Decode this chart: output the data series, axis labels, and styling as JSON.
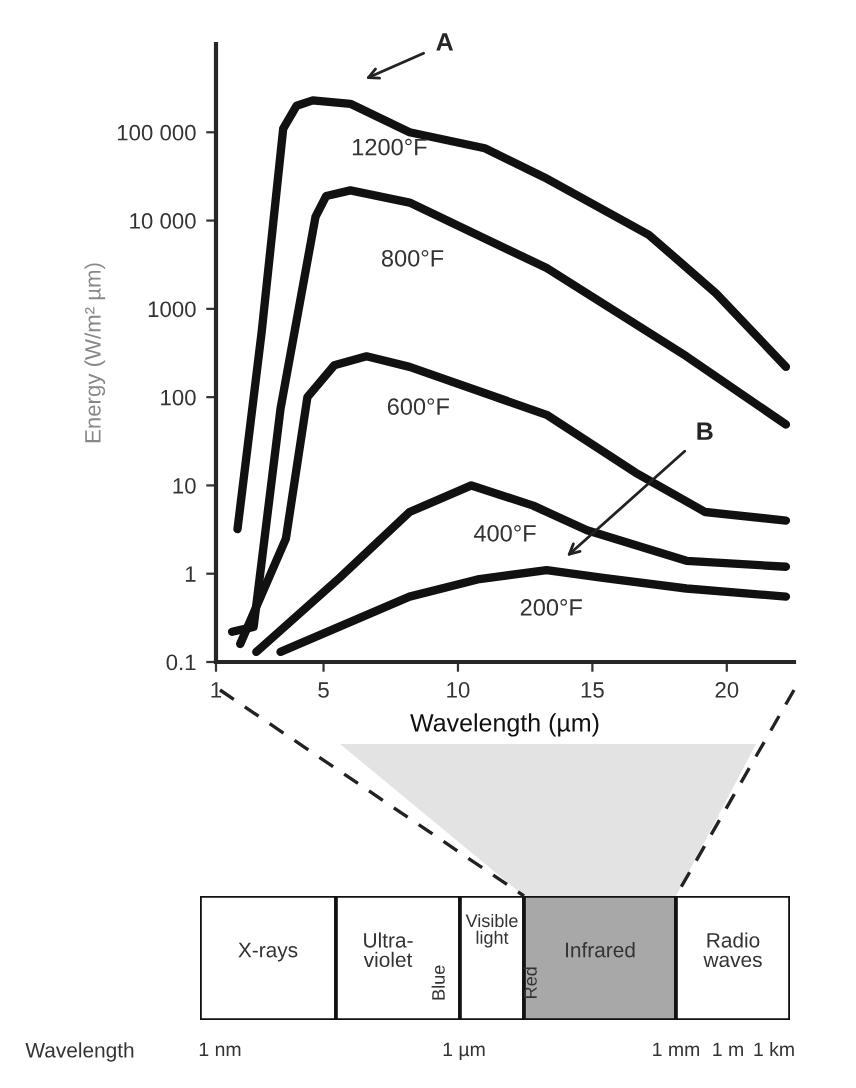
{
  "chart_data": [
    {
      "type": "line",
      "xlabel": "Wavelength (µm)",
      "ylabel": "Energy (W/m² µm)",
      "log": "y",
      "xlim": [
        1,
        22.5
      ],
      "xticks": [
        1,
        5,
        10,
        15,
        20
      ],
      "ylim": [
        0.1,
        1000000
      ],
      "yticks": [
        0.1,
        1,
        10,
        100,
        1000,
        {
          "value": 10000,
          "label": "10 000"
        },
        {
          "value": 100000,
          "label": "100 000"
        }
      ],
      "grid": false,
      "legend": false,
      "line_style": "solid",
      "marker": "none",
      "series": [
        {
          "color": "#111111",
          "x": [
            1.8,
            2.7,
            3.5,
            4.0,
            4.6,
            6.0,
            8.2,
            11.0,
            13.2,
            17.1,
            19.6,
            22.2
          ],
          "values": [
            3.2,
            550,
            110000,
            200000,
            230000,
            210000,
            100000,
            66000,
            31000,
            6900,
            1500,
            220
          ]
        },
        {
          "color": "#111111",
          "x": [
            1.6,
            2.4,
            3.4,
            4.7,
            5.1,
            6.0,
            8.2,
            13.3,
            18.5,
            22.2
          ],
          "values": [
            0.22,
            0.25,
            74,
            11000,
            19000,
            22000,
            16000,
            2900,
            290,
            49
          ]
        },
        {
          "color": "#111111",
          "x": [
            1.9,
            3.6,
            4.4,
            5.4,
            6.6,
            8.2,
            13.3,
            16.6,
            19.2,
            22.2
          ],
          "values": [
            0.16,
            2.5,
            100,
            230,
            290,
            220,
            63,
            14,
            5,
            4
          ]
        },
        {
          "color": "#111111",
          "x": [
            2.5,
            5.6,
            8.2,
            10.5,
            12.8,
            14.8,
            18.5,
            22.2
          ],
          "values": [
            0.13,
            0.9,
            5,
            10,
            5.9,
            3.1,
            1.4,
            1.2
          ]
        },
        {
          "color": "#111111",
          "x": [
            3.4,
            8.2,
            10.8,
            13.3,
            15.4,
            18.5,
            22.2
          ],
          "values": [
            0.13,
            0.55,
            0.87,
            1.1,
            0.9,
            0.68,
            0.55
          ]
        }
      ],
      "annotations": [
        "1200°F",
        "800°F",
        "600°F",
        "400°F",
        "200°F",
        "A",
        "B"
      ]
    },
    {
      "type": "other",
      "xlabel": "Wavelength",
      "categories": [
        "X-rays",
        "Ultra-\nviolet",
        "Visible\nlight",
        "Infrared",
        "Radio\nwaves"
      ],
      "colors": [
        "#ffffff",
        "#ffffff",
        "#ffffff",
        "#a8a8a8",
        "#ffffff"
      ],
      "annotations": [
        "Blue",
        "Red",
        "1 nm",
        "1 µm",
        "1 mm",
        "1 m",
        "1 km"
      ]
    }
  ]
}
